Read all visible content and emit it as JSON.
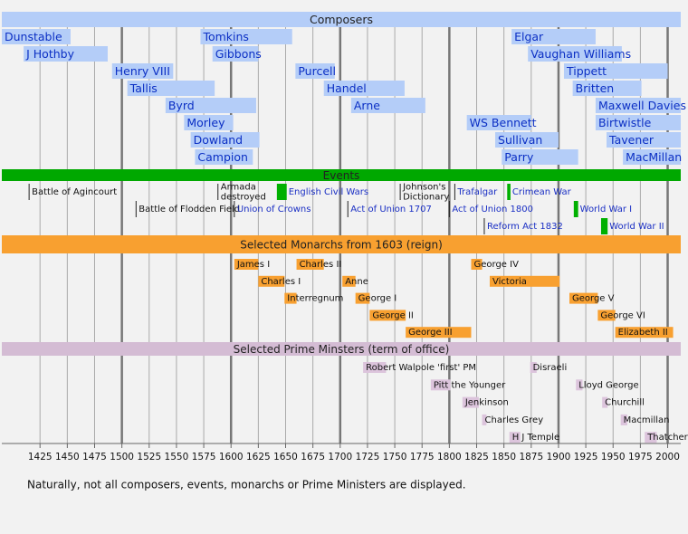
{
  "chart_data": {
    "type": "timeline",
    "xlim": [
      1390,
      2012
    ],
    "xticks": [
      1425,
      1450,
      1475,
      1500,
      1525,
      1550,
      1575,
      1600,
      1625,
      1650,
      1675,
      1700,
      1725,
      1750,
      1775,
      1800,
      1825,
      1850,
      1875,
      1900,
      1925,
      1950,
      1975,
      2000
    ],
    "grid": true,
    "sections": [
      {
        "title": "Composers",
        "header_color": "#b4cdf8",
        "color": "#b4cdf8",
        "text_color": "#0b2fc4",
        "rows": [
          [
            {
              "label": "Dunstable",
              "start": 1390,
              "end": 1453
            },
            {
              "label": "Tomkins",
              "start": 1572,
              "end": 1656
            },
            {
              "label": "Elgar",
              "start": 1857,
              "end": 1934
            }
          ],
          [
            {
              "label": "J Hothby",
              "start": 1410,
              "end": 1487
            },
            {
              "label": "Gibbons",
              "start": 1583,
              "end": 1625
            },
            {
              "label": "Vaughan Williams",
              "start": 1872,
              "end": 1958
            }
          ],
          [
            {
              "label": "Henry VIII",
              "start": 1491,
              "end": 1547
            },
            {
              "label": "Purcell",
              "start": 1659,
              "end": 1695
            },
            {
              "label": "Tippett",
              "start": 1905,
              "end": 2000
            }
          ],
          [
            {
              "label": "Tallis",
              "start": 1505,
              "end": 1585
            },
            {
              "label": "Handel",
              "start": 1685,
              "end": 1759
            },
            {
              "label": "Britten",
              "start": 1913,
              "end": 1976
            }
          ],
          [
            {
              "label": "Byrd",
              "start": 1540,
              "end": 1623
            },
            {
              "label": "Arne",
              "start": 1710,
              "end": 1778
            },
            {
              "label": "Maxwell Davies",
              "start": 1934,
              "end": 2012
            }
          ],
          [
            {
              "label": "Morley",
              "start": 1557,
              "end": 1602
            },
            {
              "label": "WS Bennett",
              "start": 1816,
              "end": 1875
            },
            {
              "label": "Birtwistle",
              "start": 1934,
              "end": 2012
            }
          ],
          [
            {
              "label": "Dowland",
              "start": 1563,
              "end": 1626
            },
            {
              "label": "Sullivan",
              "start": 1842,
              "end": 1900
            },
            {
              "label": "Tavener",
              "start": 1944,
              "end": 2012
            }
          ],
          [
            {
              "label": "Campion",
              "start": 1567,
              "end": 1620
            },
            {
              "label": "Parry",
              "start": 1848,
              "end": 1918
            },
            {
              "label": "MacMillan",
              "start": 1959,
              "end": 2012
            }
          ]
        ]
      },
      {
        "title": "Events",
        "header_color": "#00a800",
        "color": "#00b000",
        "text_color": "#111111",
        "link_color": "#1a2fc4",
        "rows": [
          [
            {
              "label": [
                "Battle of Agincourt"
              ],
              "start": 1415
            },
            {
              "label": [
                "Armada",
                "destroyed"
              ],
              "start": 1588
            },
            {
              "label": [
                "English Civil Wars"
              ],
              "start": 1642,
              "end": 1651,
              "link": true
            },
            {
              "label": [
                "Johnson's",
                "Dictionary"
              ],
              "start": 1755
            },
            {
              "label": [
                "Trafalgar"
              ],
              "start": 1805,
              "link": true
            },
            {
              "label": [
                "Crimean War"
              ],
              "start": 1853,
              "end": 1856,
              "link": true
            }
          ],
          [
            {
              "label": [
                "Battle of Flodden Field"
              ],
              "start": 1513
            },
            {
              "label": [
                "Union of Crowns"
              ],
              "start": 1603,
              "link": true
            },
            {
              "label": [
                "Act of Union 1707"
              ],
              "start": 1707,
              "link": true
            },
            {
              "label": [
                "Act of Union 1800"
              ],
              "start": 1800,
              "link": true
            },
            {
              "label": [
                "World War I"
              ],
              "start": 1914,
              "end": 1918,
              "link": true
            }
          ],
          [
            {
              "label": [
                "Reform Act 1832"
              ],
              "start": 1832,
              "link": true
            },
            {
              "label": [
                "World War II"
              ],
              "start": 1939,
              "end": 1945,
              "link": true
            }
          ]
        ]
      },
      {
        "title": "Selected Monarchs from 1603 (reign)",
        "header_color": "#f8a030",
        "color": "#f8a030",
        "text_color": "#111111",
        "rows": [
          [
            {
              "label": "James I",
              "start": 1603,
              "end": 1625
            },
            {
              "label": "Charles II",
              "start": 1660,
              "end": 1685
            },
            {
              "label": "George IV",
              "start": 1820,
              "end": 1830
            }
          ],
          [
            {
              "label": "Charles I",
              "start": 1625,
              "end": 1649
            },
            {
              "label": "Anne",
              "start": 1702,
              "end": 1714
            },
            {
              "label": "Victoria",
              "start": 1837,
              "end": 1901
            }
          ],
          [
            {
              "label": "Interregnum",
              "start": 1649,
              "end": 1660
            },
            {
              "label": "George I",
              "start": 1714,
              "end": 1727
            },
            {
              "label": "George V",
              "start": 1910,
              "end": 1936
            }
          ],
          [
            {
              "label": "George II",
              "start": 1727,
              "end": 1760
            },
            {
              "label": "George VI",
              "start": 1936,
              "end": 1952
            }
          ],
          [
            {
              "label": "George III",
              "start": 1760,
              "end": 1820
            },
            {
              "label": "Elizabeth II",
              "start": 1952,
              "end": 2005
            }
          ]
        ]
      },
      {
        "title": "Selected Prime Minsters (term of office)",
        "header_color": "#d4bcd4",
        "color": "#dcc4dc",
        "text_color": "#111111",
        "rows": [
          [
            {
              "label": "Robert Walpole 'first' PM",
              "start": 1721,
              "end": 1742
            },
            {
              "label": "Disraeli",
              "start": 1874,
              "end": 1880
            }
          ],
          [
            {
              "label": "Pitt the Younger",
              "start": 1783,
              "end": 1801
            },
            {
              "label": "Lloyd George",
              "start": 1916,
              "end": 1922
            }
          ],
          [
            {
              "label": "Jenkinson",
              "start": 1812,
              "end": 1827
            },
            {
              "label": "Churchill",
              "start": 1940,
              "end": 1945
            }
          ],
          [
            {
              "label": "Charles Grey",
              "start": 1830,
              "end": 1834
            },
            {
              "label": "Macmillan",
              "start": 1957,
              "end": 1963
            }
          ],
          [
            {
              "label": "H J Temple",
              "start": 1855,
              "end": 1865
            },
            {
              "label": "Thatcher",
              "start": 1979,
              "end": 1990
            }
          ]
        ]
      }
    ],
    "footnote": "Naturally, not all composers, events, monarchs or Prime Ministers are displayed."
  }
}
